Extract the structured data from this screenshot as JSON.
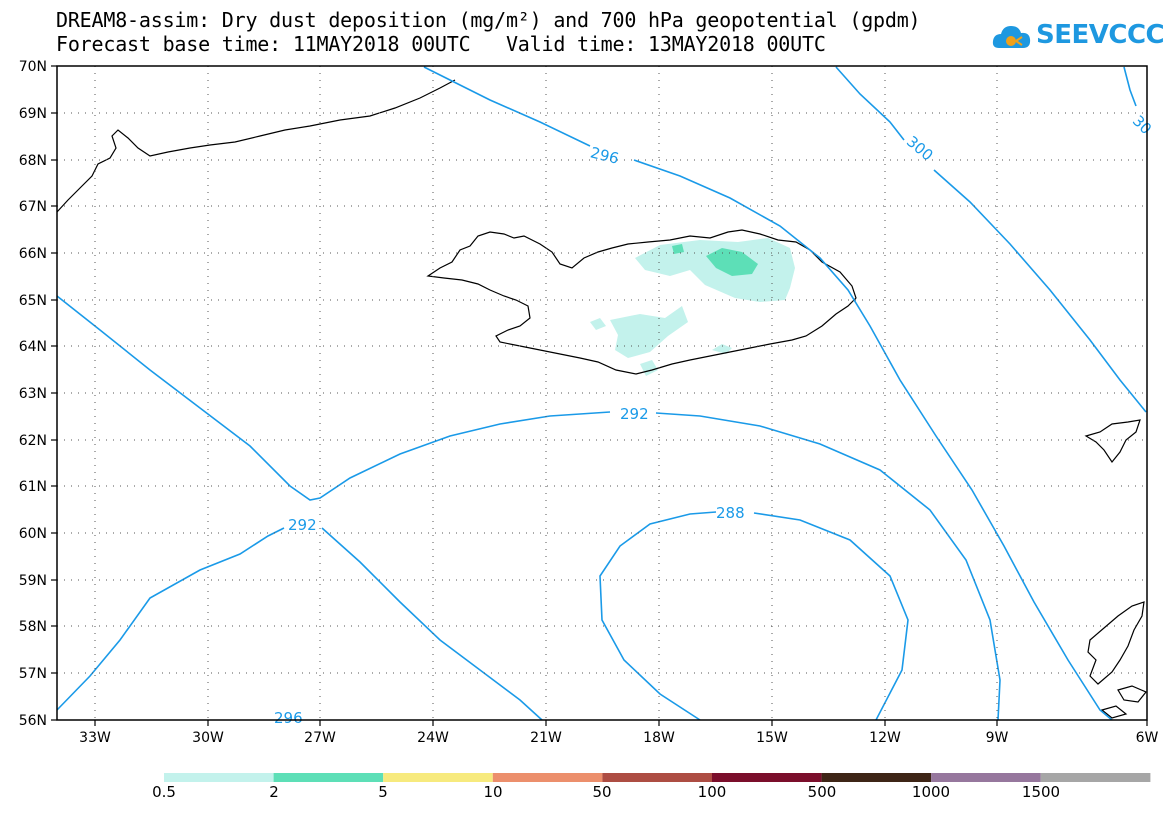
{
  "title": {
    "line1": "DREAM8-assim: Dry dust deposition (mg/m²) and 700 hPa geopotential (gpdm)",
    "line2": "Forecast base time: 11MAY2018 00UTC   Valid time: 13MAY2018 00UTC"
  },
  "logo": {
    "text": "SEEVCCC",
    "icon": "cloud-icon",
    "color": "#1e98e0"
  },
  "map": {
    "projection": "lat-lon",
    "lon_range": [
      -35,
      -6
    ],
    "lat_range": [
      56,
      70
    ],
    "latitude_labels": [
      "70N",
      "69N",
      "68N",
      "67N",
      "66N",
      "65N",
      "64N",
      "63N",
      "62N",
      "61N",
      "60N",
      "59N",
      "58N",
      "57N",
      "56N"
    ],
    "longitude_labels": [
      "33W",
      "30W",
      "27W",
      "24W",
      "21W",
      "18W",
      "15W",
      "12W",
      "9W",
      "6W"
    ],
    "contour_color": "#1a9ae8",
    "contour_labels": [
      "296",
      "300",
      "30",
      "292",
      "288",
      "292",
      "296"
    ],
    "gridlines": "dotted"
  },
  "legend": {
    "colors": [
      "#c3f2ec",
      "#5ddfb7",
      "#f7ea7e",
      "#ec8f6c",
      "#ad4d43",
      "#7b0e2b",
      "#3e2516",
      "#96779d",
      "#a6a6a6"
    ],
    "labels": [
      "0.5",
      "2",
      "5",
      "10",
      "50",
      "100",
      "500",
      "1000",
      "1500"
    ]
  }
}
